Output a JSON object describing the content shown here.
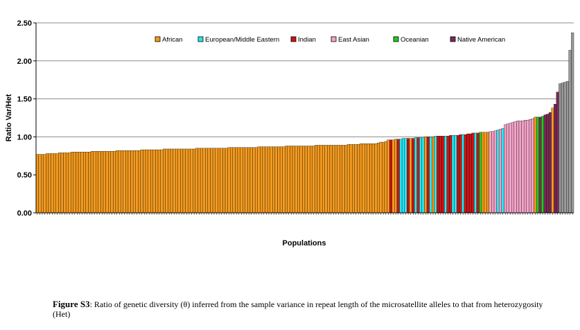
{
  "chart_data": {
    "type": "bar",
    "ylabel": "Ratio Var/Het",
    "xlabel": "Populations",
    "ylim": [
      0,
      2.5
    ],
    "yticks": [
      "0.00",
      "0.50",
      "1.00",
      "1.50",
      "2.00",
      "2.50"
    ],
    "grid": "horizontal",
    "legend_position": "top",
    "legend": [
      {
        "name": "African",
        "color": "#f39a1f"
      },
      {
        "name": "European/Middle Eastern",
        "color": "#29e4ef"
      },
      {
        "name": "Indian",
        "color": "#cc1414"
      },
      {
        "name": "East Asian",
        "color": "#f4a3c8"
      },
      {
        "name": "Oceanian",
        "color": "#22cc22"
      },
      {
        "name": "Native American",
        "color": "#7b2a57"
      }
    ],
    "groups": [
      "African",
      "African",
      "African",
      "African",
      "African",
      "African",
      "African",
      "African",
      "African",
      "African",
      "African",
      "African",
      "African",
      "African",
      "African",
      "African",
      "African",
      "African",
      "African",
      "African",
      "African",
      "African",
      "African",
      "African",
      "African",
      "African",
      "African",
      "African",
      "African",
      "African",
      "African",
      "African",
      "African",
      "African",
      "African",
      "African",
      "African",
      "African",
      "African",
      "African",
      "African",
      "African",
      "African",
      "African",
      "African",
      "African",
      "African",
      "African",
      "African",
      "African",
      "African",
      "African",
      "African",
      "African",
      "African",
      "African",
      "African",
      "African",
      "African",
      "African",
      "African",
      "African",
      "African",
      "African",
      "African",
      "African",
      "African",
      "African",
      "African",
      "African",
      "African",
      "African",
      "African",
      "African",
      "African",
      "African",
      "African",
      "African",
      "African",
      "African",
      "African",
      "African",
      "African",
      "African",
      "African",
      "African",
      "African",
      "African",
      "African",
      "African",
      "African",
      "African",
      "African",
      "African",
      "African",
      "African",
      "African",
      "African",
      "African",
      "African",
      "African",
      "African",
      "African",
      "African",
      "African",
      "African",
      "African",
      "African",
      "African",
      "African",
      "African",
      "African",
      "African",
      "African",
      "African",
      "African",
      "African",
      "African",
      "African",
      "African",
      "African",
      "African",
      "African",
      "African",
      "African",
      "African",
      "African",
      "African",
      "African",
      "African",
      "African",
      "African",
      "African",
      "African",
      "African",
      "African",
      "African",
      "African",
      "African",
      "African",
      "African",
      "African",
      "Indian",
      "African",
      "African",
      "Indian",
      "European/Middle Eastern",
      "European/Middle Eastern",
      "European/Middle Eastern",
      "Indian",
      "African",
      "Indian",
      "European/Middle Eastern",
      "Indian",
      "European/Middle Eastern",
      "European/Middle Eastern",
      "African",
      "Indian",
      "European/Middle Eastern",
      "African",
      "European/Middle Eastern",
      "Indian",
      "Indian",
      "Indian",
      "European/Middle Eastern",
      "Indian",
      "Indian",
      "European/Middle Eastern",
      "European/Middle Eastern",
      "Indian",
      "Indian",
      "European/Middle Eastern",
      "Indian",
      "Indian",
      "Indian",
      "Indian",
      "European/Middle Eastern",
      "Indian",
      "Oceanian",
      "African",
      "African",
      "African",
      "East Asian",
      "East Asian",
      "East Asian",
      "European/Middle Eastern",
      "East Asian",
      "European/Middle Eastern",
      "East Asian",
      "East Asian",
      "East Asian",
      "East Asian",
      "East Asian",
      "East Asian",
      "East Asian",
      "East Asian",
      "East Asian",
      "East Asian",
      "East Asian",
      "East Asian",
      "African",
      "Oceanian",
      "Native American",
      "Oceanian",
      "Native American",
      "Native American",
      "Native American",
      "African",
      "Native American",
      "Native American"
    ],
    "values": [
      0.77,
      0.77,
      0.77,
      0.77,
      0.78,
      0.78,
      0.78,
      0.78,
      0.78,
      0.79,
      0.79,
      0.79,
      0.79,
      0.79,
      0.8,
      0.8,
      0.8,
      0.8,
      0.8,
      0.8,
      0.8,
      0.8,
      0.81,
      0.81,
      0.81,
      0.81,
      0.81,
      0.81,
      0.81,
      0.81,
      0.81,
      0.81,
      0.82,
      0.82,
      0.82,
      0.82,
      0.82,
      0.82,
      0.82,
      0.82,
      0.82,
      0.82,
      0.83,
      0.83,
      0.83,
      0.83,
      0.83,
      0.83,
      0.83,
      0.83,
      0.83,
      0.84,
      0.84,
      0.84,
      0.84,
      0.84,
      0.84,
      0.84,
      0.84,
      0.84,
      0.84,
      0.84,
      0.84,
      0.84,
      0.85,
      0.85,
      0.85,
      0.85,
      0.85,
      0.85,
      0.85,
      0.85,
      0.85,
      0.85,
      0.85,
      0.85,
      0.85,
      0.86,
      0.86,
      0.86,
      0.86,
      0.86,
      0.86,
      0.86,
      0.86,
      0.86,
      0.86,
      0.86,
      0.86,
      0.87,
      0.87,
      0.87,
      0.87,
      0.87,
      0.87,
      0.87,
      0.87,
      0.87,
      0.87,
      0.87,
      0.88,
      0.88,
      0.88,
      0.88,
      0.88,
      0.88,
      0.88,
      0.88,
      0.88,
      0.88,
      0.88,
      0.88,
      0.89,
      0.89,
      0.89,
      0.89,
      0.89,
      0.89,
      0.89,
      0.89,
      0.89,
      0.89,
      0.89,
      0.89,
      0.89,
      0.9,
      0.9,
      0.9,
      0.9,
      0.9,
      0.91,
      0.91,
      0.91,
      0.91,
      0.91,
      0.91,
      0.91,
      0.92,
      0.93,
      0.93,
      0.94,
      0.96,
      0.96,
      0.96,
      0.97,
      0.97,
      0.97,
      0.98,
      0.98,
      0.98,
      0.98,
      0.98,
      0.99,
      0.99,
      0.99,
      0.99,
      1.0,
      1.0,
      1.0,
      1.0,
      1.01,
      1.01,
      1.01,
      1.01,
      1.01,
      1.01,
      1.02,
      1.02,
      1.02,
      1.02,
      1.03,
      1.03,
      1.03,
      1.04,
      1.04,
      1.05,
      1.05,
      1.05,
      1.06,
      1.06,
      1.06,
      1.06,
      1.07,
      1.07,
      1.08,
      1.09,
      1.1,
      1.11,
      1.16,
      1.17,
      1.18,
      1.19,
      1.2,
      1.21,
      1.21,
      1.21,
      1.22,
      1.22,
      1.23,
      1.24,
      1.26,
      1.26,
      1.26,
      1.27,
      1.29,
      1.3,
      1.32,
      1.38,
      1.43,
      1.59,
      1.7,
      1.71,
      1.72,
      1.73,
      2.14,
      2.37
    ]
  },
  "caption": {
    "label": "Figure S3",
    "text": ": Ratio of genetic diversity (θ) inferred from the sample variance in repeat length of the microsatellite alleles to that from heterozygosity (Het)"
  }
}
